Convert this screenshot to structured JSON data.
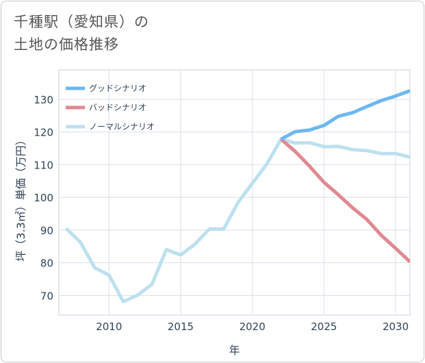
{
  "header": {
    "title_line1": "千種駅（愛知県）の",
    "title_line2": "土地の価格推移"
  },
  "chart_data": {
    "type": "line",
    "title": "千種駅（愛知県）の土地の価格推移",
    "xlabel": "年",
    "ylabel": "坪（3.3㎡）単価（万円）",
    "xlim": [
      2006.5,
      2031
    ],
    "ylim": [
      64,
      139
    ],
    "x_ticks": [
      2010,
      2015,
      2020,
      2025,
      2030
    ],
    "y_ticks": [
      70,
      80,
      90,
      100,
      110,
      120,
      130
    ],
    "grid": true,
    "legend_position": "top-left",
    "series": [
      {
        "name": "グッドシナリオ",
        "color": "#6cb7f0",
        "x": [
          2022,
          2023,
          2024,
          2025,
          2026,
          2027,
          2028,
          2029,
          2030,
          2031
        ],
        "values": [
          117.8,
          120.1,
          120.6,
          122.0,
          124.8,
          125.9,
          127.8,
          129.6,
          131.0,
          132.6
        ]
      },
      {
        "name": "バッドシナリオ",
        "color": "#e08890",
        "x": [
          2022,
          2023,
          2024,
          2025,
          2026,
          2027,
          2028,
          2029,
          2030,
          2031
        ],
        "values": [
          117.8,
          114.0,
          109.5,
          104.6,
          100.8,
          96.8,
          93.2,
          88.4,
          84.4,
          80.3
        ]
      },
      {
        "name": "ノーマルシナリオ",
        "color": "#bde0ee",
        "x": [
          2007,
          2008,
          2009,
          2010,
          2011,
          2012,
          2013,
          2014,
          2015,
          2016,
          2017,
          2018,
          2019,
          2020,
          2021,
          2022,
          2023,
          2024,
          2025,
          2026,
          2027,
          2028,
          2029,
          2030,
          2031
        ],
        "values": [
          90.5,
          86.3,
          78.5,
          76.2,
          68.1,
          70.1,
          73.4,
          84.0,
          82.4,
          85.7,
          90.3,
          90.3,
          98.4,
          104.3,
          110.1,
          117.8,
          116.6,
          116.7,
          115.5,
          115.6,
          114.6,
          114.3,
          113.4,
          113.4,
          112.3
        ]
      }
    ]
  }
}
